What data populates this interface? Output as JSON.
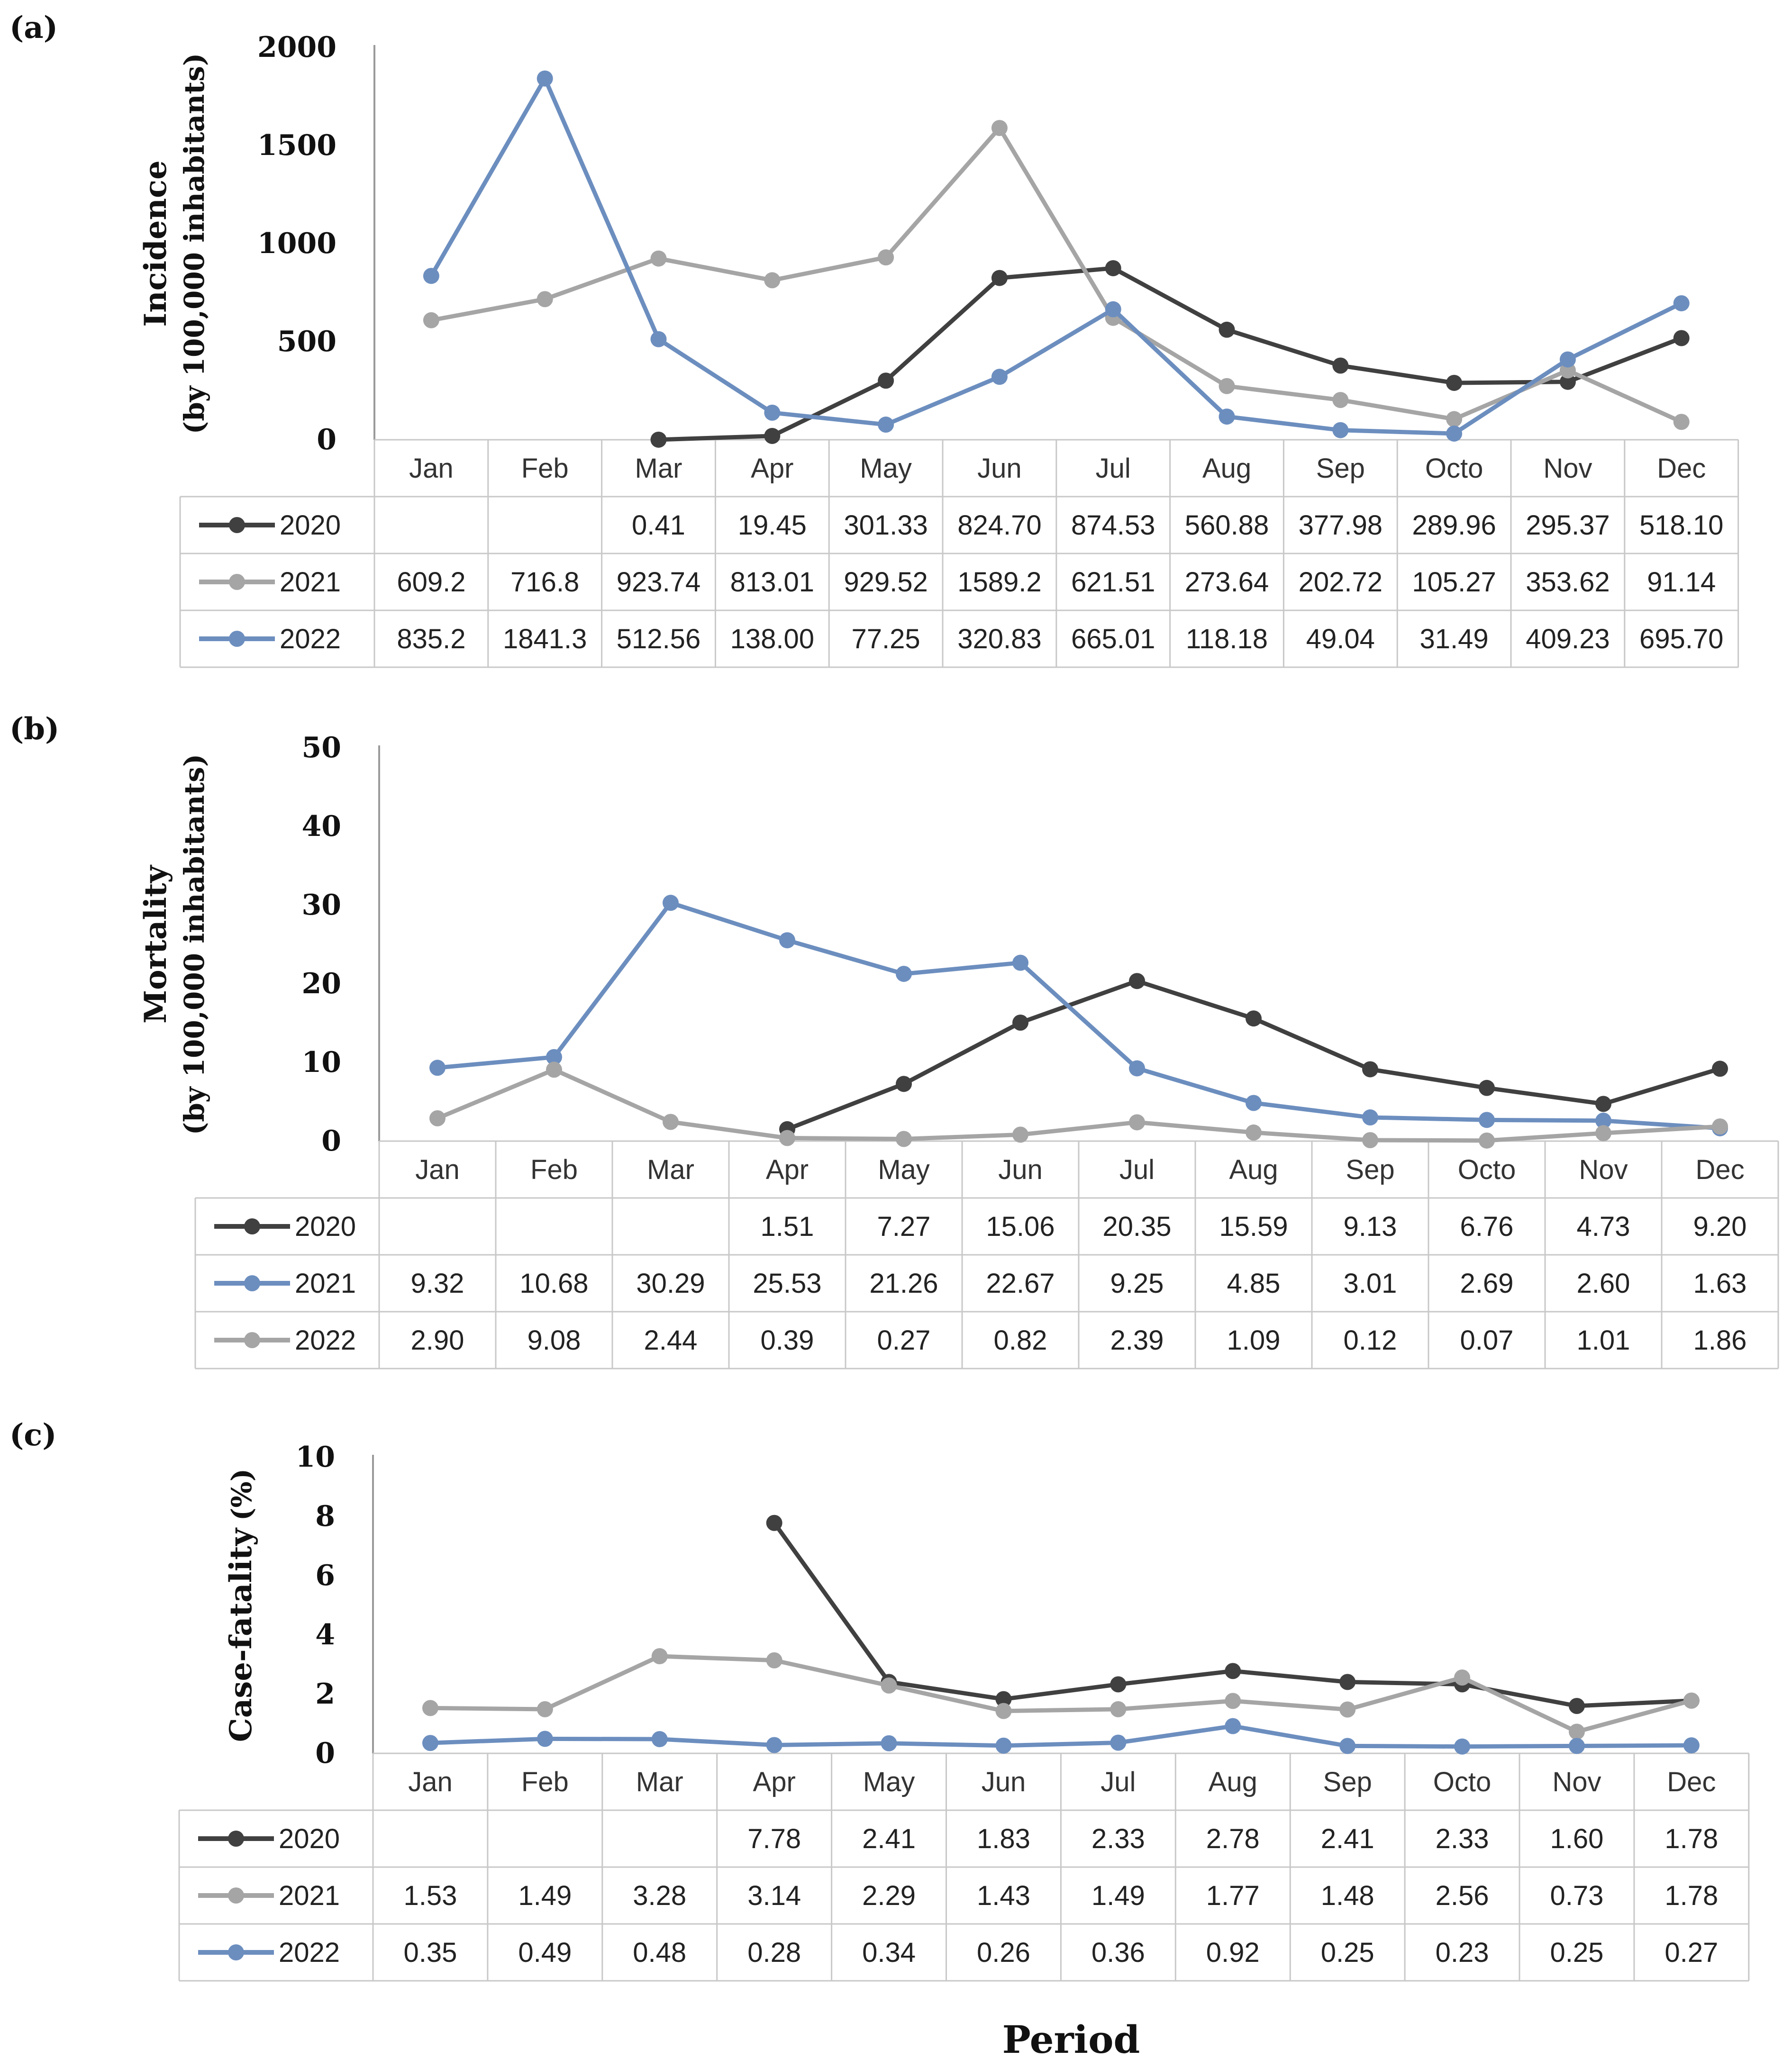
{
  "xlabel": "Period",
  "chart_data": [
    {
      "panel_label": "(a)",
      "type": "line",
      "ylabel": "Incidence",
      "ylabel_sub": "(by 100,000 inhabitants)",
      "ylim": [
        0,
        2000
      ],
      "yticks": [
        "0",
        "500",
        "1000",
        "1500",
        "2000"
      ],
      "ytick_values": [
        0,
        500,
        1000,
        1500,
        2000
      ],
      "categories": [
        "Jan",
        "Feb",
        "Mar",
        "Apr",
        "May",
        "Jun",
        "Jul",
        "Aug",
        "Sep",
        "Octo",
        "Nov",
        "Dec"
      ],
      "series": [
        {
          "name": "2020",
          "color": "#404040",
          "values": [
            null,
            null,
            0.41,
            19.45,
            301.33,
            824.7,
            874.53,
            560.88,
            377.98,
            289.96,
            295.37,
            518.1
          ],
          "labels": [
            "",
            "",
            "0.41",
            "19.45",
            "301.33",
            "824.70",
            "874.53",
            "560.88",
            "377.98",
            "289.96",
            "295.37",
            "518.10"
          ]
        },
        {
          "name": "2021",
          "color": "#a5a5a5",
          "values": [
            609.2,
            716.8,
            923.74,
            813.01,
            929.52,
            1589.2,
            621.51,
            273.64,
            202.72,
            105.27,
            353.62,
            91.14
          ],
          "labels": [
            "609.2",
            "716.8",
            "923.74",
            "813.01",
            "929.52",
            "1589.2",
            "621.51",
            "273.64",
            "202.72",
            "105.27",
            "353.62",
            "91.14"
          ]
        },
        {
          "name": "2022",
          "color": "#6c8ebf",
          "values": [
            835.2,
            1841.3,
            512.56,
            138.0,
            77.25,
            320.83,
            665.01,
            118.18,
            49.04,
            31.49,
            409.23,
            695.7
          ],
          "labels": [
            "835.2",
            "1841.3",
            "512.56",
            "138.00",
            "77.25",
            "320.83",
            "665.01",
            "118.18",
            "49.04",
            "31.49",
            "409.23",
            "695.70"
          ]
        }
      ]
    },
    {
      "panel_label": "(b)",
      "type": "line",
      "ylabel": "Mortality",
      "ylabel_sub": "(by 100,000 inhabitants)",
      "ylim": [
        0,
        50
      ],
      "yticks": [
        "0",
        "10",
        "20",
        "30",
        "40",
        "50"
      ],
      "ytick_values": [
        0,
        10,
        20,
        30,
        40,
        50
      ],
      "categories": [
        "Jan",
        "Feb",
        "Mar",
        "Apr",
        "May",
        "Jun",
        "Jul",
        "Aug",
        "Sep",
        "Octo",
        "Nov",
        "Dec"
      ],
      "series": [
        {
          "name": "2020",
          "color": "#404040",
          "values": [
            null,
            null,
            null,
            1.51,
            7.27,
            15.06,
            20.35,
            15.59,
            9.13,
            6.76,
            4.73,
            9.2
          ],
          "labels": [
            "",
            "",
            "",
            "1.51",
            "7.27",
            "15.06",
            "20.35",
            "15.59",
            "9.13",
            "6.76",
            "4.73",
            "9.20"
          ]
        },
        {
          "name": "2021",
          "color": "#6c8ebf",
          "values": [
            9.32,
            10.68,
            30.29,
            25.53,
            21.26,
            22.67,
            9.25,
            4.85,
            3.01,
            2.69,
            2.6,
            1.63
          ],
          "labels": [
            "9.32",
            "10.68",
            "30.29",
            "25.53",
            "21.26",
            "22.67",
            "9.25",
            "4.85",
            "3.01",
            "2.69",
            "2.60",
            "1.63"
          ]
        },
        {
          "name": "2022",
          "color": "#a5a5a5",
          "values": [
            2.9,
            9.08,
            2.44,
            0.39,
            0.27,
            0.82,
            2.39,
            1.09,
            0.12,
            0.07,
            1.01,
            1.86
          ],
          "labels": [
            "2.90",
            "9.08",
            "2.44",
            "0.39",
            "0.27",
            "0.82",
            "2.39",
            "1.09",
            "0.12",
            "0.07",
            "1.01",
            "1.86"
          ]
        }
      ]
    },
    {
      "panel_label": "(c)",
      "type": "line",
      "ylabel": "Case-fatality",
      "ylabel_sub": "(%)",
      "ylim": [
        0,
        10
      ],
      "yticks": [
        "0",
        "2",
        "4",
        "6",
        "8",
        "10"
      ],
      "ytick_values": [
        0,
        2,
        4,
        6,
        8,
        10
      ],
      "categories": [
        "Jan",
        "Feb",
        "Mar",
        "Apr",
        "May",
        "Jun",
        "Jul",
        "Aug",
        "Sep",
        "Octo",
        "Nov",
        "Dec"
      ],
      "series": [
        {
          "name": "2020",
          "color": "#404040",
          "values": [
            null,
            null,
            null,
            7.78,
            2.41,
            1.83,
            2.33,
            2.78,
            2.41,
            2.33,
            1.6,
            1.78
          ],
          "labels": [
            "",
            "",
            "",
            "7.78",
            "2.41",
            "1.83",
            "2.33",
            "2.78",
            "2.41",
            "2.33",
            "1.60",
            "1.78"
          ]
        },
        {
          "name": "2021",
          "color": "#a5a5a5",
          "values": [
            1.53,
            1.49,
            3.28,
            3.14,
            2.29,
            1.43,
            1.49,
            1.77,
            1.48,
            2.56,
            0.73,
            1.78
          ],
          "labels": [
            "1.53",
            "1.49",
            "3.28",
            "3.14",
            "2.29",
            "1.43",
            "1.49",
            "1.77",
            "1.48",
            "2.56",
            "0.73",
            "1.78"
          ]
        },
        {
          "name": "2022",
          "color": "#6c8ebf",
          "values": [
            0.35,
            0.49,
            0.48,
            0.28,
            0.34,
            0.26,
            0.36,
            0.92,
            0.25,
            0.23,
            0.25,
            0.27
          ],
          "labels": [
            "0.35",
            "0.49",
            "0.48",
            "0.28",
            "0.34",
            "0.26",
            "0.36",
            "0.92",
            "0.25",
            "0.23",
            "0.25",
            "0.27"
          ]
        }
      ]
    }
  ]
}
